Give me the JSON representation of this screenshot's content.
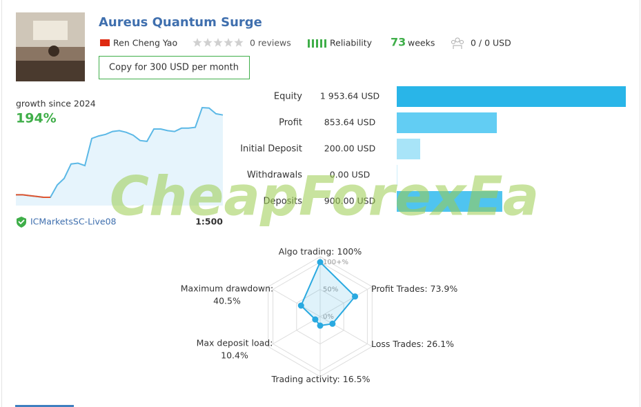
{
  "header": {
    "title": "Aureus Quantum Surge",
    "author": "Ren Cheng Yao",
    "reviews": "0 reviews",
    "reliability": "Reliability",
    "weeks_number": "73",
    "weeks_unit": "weeks",
    "subscribers": "0 / 0 USD",
    "copy_button": "Copy for 300 USD per month"
  },
  "growth": {
    "label": "growth since 2024",
    "value": "194%",
    "broker": "ICMarketsSC-Live08",
    "leverage": "1:500"
  },
  "watermark": "CheapForexEa",
  "chart_data": [
    {
      "type": "line",
      "color": "#5bb8e6",
      "negative_color": "#e0552f",
      "fill": "#e6f4fc",
      "values": [
        0,
        0,
        -2,
        -4,
        -6,
        -6,
        24,
        40,
        75,
        77,
        71,
        137,
        143,
        147,
        154,
        156,
        152,
        145,
        132,
        130,
        160,
        160,
        156,
        154,
        162,
        162,
        164,
        212,
        211,
        197,
        194
      ]
    },
    {
      "type": "hbar",
      "categories": [
        "Equity",
        "Profit",
        "Initial Deposit",
        "Withdrawals",
        "Deposits"
      ],
      "values": [
        1953.64,
        853.64,
        200.0,
        0.0,
        900.0
      ],
      "value_labels": [
        "1 953.64 USD",
        "853.64 USD",
        "200.00 USD",
        "0.00 USD",
        "900.00 USD"
      ],
      "colors": [
        "#29b5e8",
        "#62cdf3",
        "#a8e4f8",
        "#cdeffb",
        "#4fc4f0"
      ]
    },
    {
      "type": "radar",
      "categories": [
        "Algo trading:",
        "Profit Trades:",
        "Loss Trades:",
        "Trading activity:",
        "Max deposit load:",
        "Maximum drawdown:"
      ],
      "values": [
        100,
        73.9,
        26.1,
        16.5,
        10.4,
        40.5
      ],
      "value_labels": [
        "100%",
        "73.9%",
        "26.1%",
        "16.5%",
        "10.4%",
        "40.5%"
      ],
      "color": "#29a9e0",
      "rlim": [
        0,
        100
      ],
      "rticks": [
        {
          "value": 0,
          "label": "0%"
        },
        {
          "value": 50,
          "label": "50%"
        },
        {
          "value": 100,
          "label": "100+%"
        }
      ]
    }
  ]
}
